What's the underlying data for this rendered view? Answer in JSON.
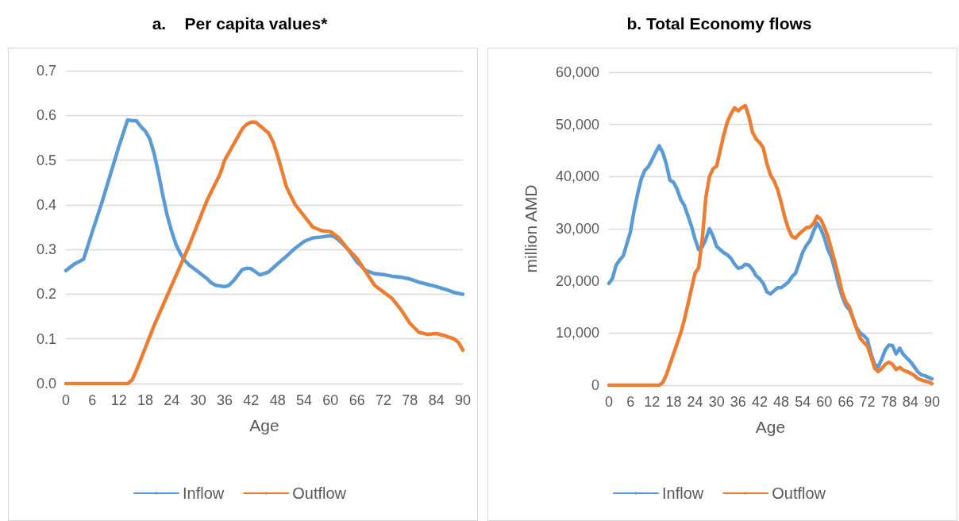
{
  "chart_data": [
    {
      "type": "line",
      "title": "a.    Per capita values*",
      "xlabel": "Age",
      "xlim": [
        0,
        90
      ],
      "xticks": [
        0,
        6,
        12,
        18,
        24,
        30,
        36,
        42,
        48,
        54,
        60,
        66,
        72,
        78,
        84,
        90
      ],
      "ylim": [
        0,
        0.7
      ],
      "yticks": [
        {
          "value": 0,
          "label": "0.0"
        },
        0.1,
        0.2,
        0.3,
        0.4,
        0.5,
        0.6,
        0.7
      ],
      "grid": "y",
      "legend": "bottom",
      "marker": "none",
      "line_style": "solid",
      "series": [
        {
          "name": "Inflow",
          "color": "#5b9bd5",
          "x": [
            0,
            2,
            4,
            6,
            8,
            10,
            12,
            14,
            15,
            16,
            17,
            18,
            19,
            20,
            21,
            22,
            23,
            24,
            25,
            26,
            27,
            28,
            30,
            32,
            33,
            34,
            36,
            37,
            38,
            40,
            41,
            42,
            44,
            46,
            48,
            50,
            52,
            54,
            56,
            58,
            60,
            61,
            62,
            64,
            66,
            68,
            70,
            72,
            74,
            76,
            78,
            80,
            82,
            84,
            86,
            88,
            90
          ],
          "values": [
            0.253,
            0.268,
            0.278,
            0.34,
            0.4,
            0.465,
            0.53,
            0.59,
            0.588,
            0.588,
            0.575,
            0.565,
            0.548,
            0.515,
            0.47,
            0.42,
            0.375,
            0.34,
            0.31,
            0.29,
            0.275,
            0.265,
            0.25,
            0.235,
            0.225,
            0.22,
            0.217,
            0.22,
            0.23,
            0.255,
            0.258,
            0.257,
            0.243,
            0.25,
            0.268,
            0.285,
            0.303,
            0.318,
            0.326,
            0.328,
            0.331,
            0.328,
            0.32,
            0.3,
            0.272,
            0.253,
            0.246,
            0.244,
            0.24,
            0.238,
            0.234,
            0.227,
            0.222,
            0.217,
            0.211,
            0.204,
            0.2
          ]
        },
        {
          "name": "Outflow",
          "color": "#ed7d31",
          "x": [
            0,
            14,
            15,
            16,
            18,
            20,
            22,
            24,
            26,
            28,
            30,
            32,
            33,
            34,
            35,
            36,
            38,
            40,
            41,
            42,
            43,
            44,
            46,
            47,
            48,
            50,
            52,
            54,
            56,
            58,
            60,
            62,
            64,
            66,
            68,
            70,
            72,
            74,
            76,
            78,
            80,
            82,
            84,
            86,
            88,
            89,
            90
          ],
          "values": [
            0,
            0,
            0.008,
            0.03,
            0.08,
            0.13,
            0.175,
            0.22,
            0.265,
            0.31,
            0.36,
            0.41,
            0.43,
            0.45,
            0.47,
            0.5,
            0.535,
            0.57,
            0.58,
            0.585,
            0.585,
            0.577,
            0.56,
            0.54,
            0.51,
            0.44,
            0.4,
            0.375,
            0.35,
            0.342,
            0.34,
            0.325,
            0.3,
            0.28,
            0.25,
            0.22,
            0.205,
            0.19,
            0.165,
            0.135,
            0.115,
            0.11,
            0.112,
            0.107,
            0.1,
            0.092,
            0.075
          ]
        }
      ]
    },
    {
      "type": "line",
      "title": "b. Total Economy flows",
      "xlabel": "Age",
      "ylabel": "million AMD",
      "xlim": [
        0,
        90
      ],
      "xticks": [
        0,
        6,
        12,
        18,
        24,
        30,
        36,
        42,
        48,
        54,
        60,
        66,
        72,
        78,
        84,
        90
      ],
      "ylim": [
        0,
        60000
      ],
      "yticks": [
        0,
        {
          "value": 10000,
          "label": "10,000"
        },
        {
          "value": 20000,
          "label": "20,000"
        },
        {
          "value": 30000,
          "label": "30,000"
        },
        {
          "value": 40000,
          "label": "40,000"
        },
        {
          "value": 50000,
          "label": "50,000"
        },
        {
          "value": 60000,
          "label": "60,000"
        }
      ],
      "grid": "y",
      "legend": "bottom",
      "marker": "none",
      "line_style": "solid",
      "series": [
        {
          "name": "Inflow",
          "color": "#5b9bd5",
          "x": [
            0,
            1,
            2,
            3,
            4,
            6,
            7,
            8,
            9,
            10,
            11,
            12,
            13,
            14,
            15,
            16,
            17,
            18,
            19,
            20,
            21,
            22,
            23,
            24,
            25,
            26,
            27,
            28,
            29,
            30,
            31,
            32,
            33,
            34,
            35,
            36,
            37,
            38,
            39,
            40,
            41,
            42,
            43,
            44,
            45,
            46,
            47,
            48,
            49,
            50,
            51,
            52,
            53,
            54,
            55,
            56,
            57,
            58,
            59,
            60,
            61,
            62,
            63,
            64,
            65,
            66,
            67,
            68,
            69,
            70,
            71,
            72,
            73,
            74,
            75,
            76,
            77,
            78,
            79,
            80,
            81,
            82,
            83,
            84,
            85,
            86,
            87,
            88,
            89,
            90
          ],
          "values": [
            19500,
            20500,
            23000,
            24000,
            24800,
            29400,
            33400,
            36700,
            39500,
            41200,
            41900,
            43200,
            44600,
            45900,
            44600,
            42400,
            39300,
            38900,
            37600,
            35600,
            34500,
            32500,
            30500,
            28000,
            26000,
            26500,
            28000,
            30000,
            28600,
            26600,
            26000,
            25400,
            25000,
            24300,
            23200,
            22400,
            22600,
            23200,
            23000,
            22200,
            21000,
            20400,
            19500,
            17900,
            17500,
            18100,
            18700,
            18700,
            19200,
            19800,
            20800,
            21500,
            23500,
            25500,
            26800,
            27700,
            29500,
            31100,
            30000,
            28300,
            26000,
            24500,
            22000,
            19300,
            17000,
            15300,
            14500,
            12800,
            11000,
            10000,
            9500,
            8800,
            6000,
            4000,
            3500,
            5000,
            6800,
            7700,
            7600,
            6000,
            7100,
            5900,
            5200,
            4500,
            3600,
            2600,
            2000,
            1800,
            1500,
            1200
          ]
        },
        {
          "name": "Outflow",
          "color": "#ed7d31",
          "x": [
            0,
            14,
            15,
            16,
            17,
            18,
            19,
            20,
            21,
            22,
            23,
            24,
            25,
            26,
            27,
            28,
            29,
            30,
            31,
            32,
            33,
            34,
            35,
            36,
            37,
            38,
            39,
            40,
            41,
            42,
            43,
            44,
            45,
            46,
            47,
            48,
            49,
            50,
            51,
            52,
            53,
            54,
            55,
            56,
            57,
            58,
            59,
            60,
            61,
            62,
            63,
            64,
            65,
            66,
            67,
            68,
            69,
            70,
            71,
            72,
            73,
            74,
            75,
            76,
            77,
            78,
            79,
            80,
            81,
            82,
            83,
            84,
            85,
            86,
            87,
            88,
            89,
            90
          ],
          "values": [
            0,
            0,
            500,
            2000,
            4000,
            6000,
            8000,
            10000,
            12500,
            15500,
            18500,
            21500,
            22500,
            28000,
            36000,
            40000,
            41500,
            42000,
            45000,
            48000,
            50500,
            52000,
            53200,
            52600,
            53200,
            53600,
            51500,
            48500,
            47200,
            46500,
            45500,
            42500,
            40300,
            39200,
            37500,
            35000,
            32200,
            30000,
            28500,
            28200,
            29000,
            29600,
            30200,
            30300,
            31000,
            32400,
            31800,
            30300,
            28500,
            26000,
            23500,
            20800,
            17800,
            16000,
            15000,
            12800,
            10800,
            9000,
            8200,
            7500,
            5500,
            3300,
            2600,
            3200,
            4000,
            4400,
            4000,
            3000,
            3400,
            2900,
            2600,
            2300,
            1900,
            1300,
            1000,
            800,
            600,
            300
          ]
        }
      ]
    }
  ]
}
